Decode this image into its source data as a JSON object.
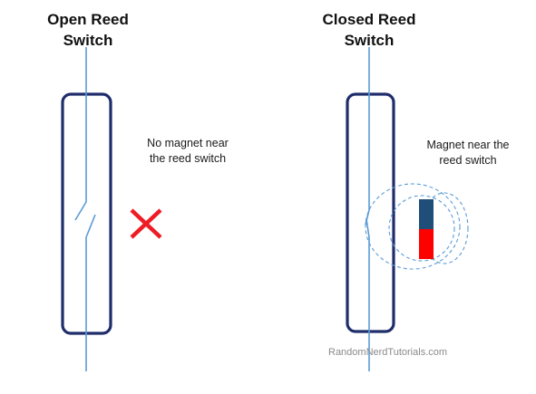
{
  "open_panel": {
    "title_line1": "Open Reed",
    "title_line2": "Switch",
    "caption_line1": "No magnet near",
    "caption_line2": "the reed switch",
    "state_icon": "red-x-icon"
  },
  "closed_panel": {
    "title_line1": "Closed Reed",
    "title_line2": "Switch",
    "caption_line1": "Magnet near the",
    "caption_line2": "reed switch",
    "magnet_icon": "bar-magnet-icon"
  },
  "watermark": "RandomNerdTutorials.com",
  "colors": {
    "wire": "#5b9bd5",
    "housing": "#1f2d6b",
    "x_mark": "#ee1c24",
    "magnet_top": "#1f4e79",
    "magnet_bottom": "#ff0000",
    "field_lines": "#5b9bd5"
  }
}
